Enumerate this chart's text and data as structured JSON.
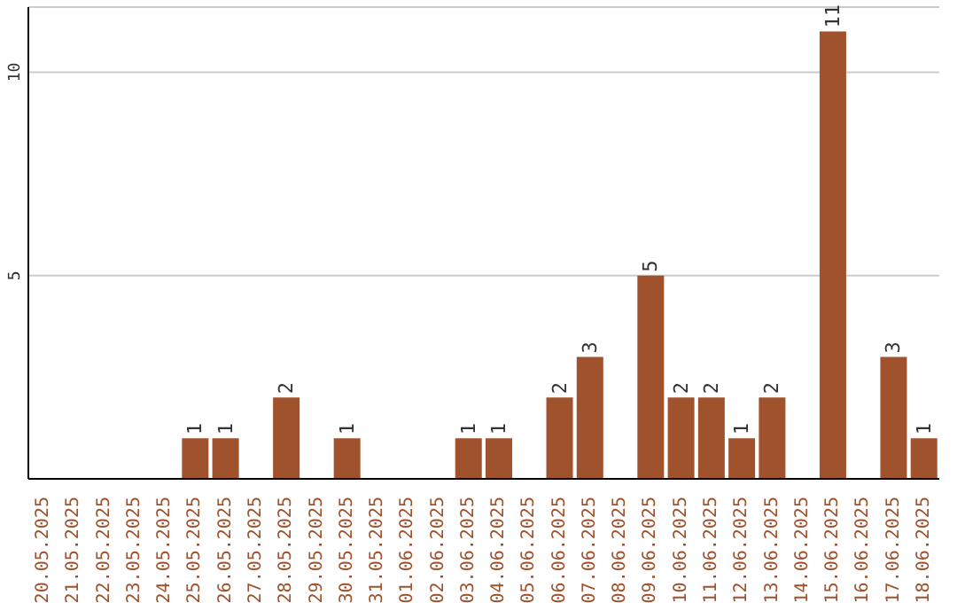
{
  "chart_data": {
    "type": "bar",
    "categories": [
      "20.05.2025",
      "21.05.2025",
      "22.05.2025",
      "23.05.2025",
      "24.05.2025",
      "25.05.2025",
      "26.05.2025",
      "27.05.2025",
      "28.05.2025",
      "29.05.2025",
      "30.05.2025",
      "31.05.2025",
      "01.06.2025",
      "02.06.2025",
      "03.06.2025",
      "04.06.2025",
      "05.06.2025",
      "06.06.2025",
      "07.06.2025",
      "08.06.2025",
      "09.06.2025",
      "10.06.2025",
      "11.06.2025",
      "12.06.2025",
      "13.06.2025",
      "14.06.2025",
      "15.06.2025",
      "16.06.2025",
      "17.06.2025",
      "18.06.2025"
    ],
    "values": [
      0,
      0,
      0,
      0,
      0,
      1,
      1,
      0,
      2,
      0,
      1,
      0,
      0,
      0,
      1,
      1,
      0,
      2,
      3,
      0,
      5,
      2,
      2,
      1,
      2,
      0,
      11,
      0,
      3,
      1
    ],
    "value_labels": [
      null,
      null,
      null,
      null,
      null,
      "1",
      "1",
      null,
      "2",
      null,
      "1",
      null,
      null,
      null,
      "1",
      "1",
      null,
      "2",
      "3",
      null,
      "5",
      "2",
      "2",
      "1",
      "2",
      null,
      "11",
      null,
      "3",
      "1"
    ],
    "color": "#a0522d",
    "ylim": [
      0,
      11.6
    ],
    "yticks": [
      5,
      10
    ],
    "grid": "y"
  }
}
